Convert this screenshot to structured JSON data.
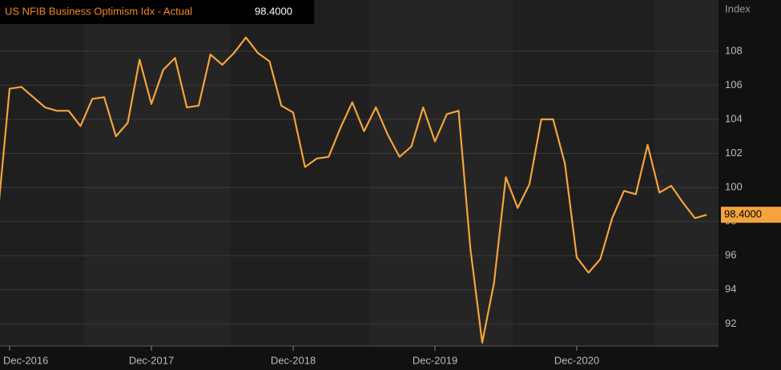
{
  "chart_data": {
    "type": "line",
    "axis_label": "Index",
    "categories": [
      null,
      "Dec-2016",
      null,
      null,
      null,
      null,
      null,
      null,
      null,
      null,
      null,
      null,
      null,
      "Dec-2017",
      null,
      null,
      null,
      null,
      null,
      null,
      null,
      null,
      null,
      null,
      null,
      "Dec-2018",
      null,
      null,
      null,
      null,
      null,
      null,
      null,
      null,
      null,
      null,
      null,
      "Dec-2019",
      null,
      null,
      null,
      null,
      null,
      null,
      null,
      null,
      null,
      null,
      null,
      "Dec-2020",
      null,
      null,
      null,
      null,
      null,
      null,
      null,
      null,
      null,
      null,
      null
    ],
    "series": [
      {
        "name": "US NFIB Business Optimism Idx - Actual",
        "color": "#f5a33c",
        "values": [
          98.4,
          105.8,
          105.9,
          105.3,
          104.7,
          104.5,
          104.5,
          103.6,
          105.2,
          105.3,
          103.0,
          103.8,
          107.5,
          104.9,
          106.9,
          107.6,
          104.7,
          104.8,
          107.8,
          107.2,
          107.9,
          108.8,
          107.9,
          107.4,
          104.8,
          104.4,
          101.2,
          101.7,
          101.8,
          103.5,
          105.0,
          103.3,
          104.7,
          103.1,
          101.8,
          102.4,
          104.7,
          102.7,
          104.3,
          104.5,
          96.4,
          90.9,
          94.4,
          100.6,
          98.8,
          100.2,
          104.0,
          104.0,
          101.4,
          95.9,
          95.0,
          95.8,
          98.2,
          99.8,
          99.6,
          102.5,
          99.7,
          100.1,
          99.1,
          98.2,
          98.4
        ],
        "value_labels": [
          null,
          null,
          null,
          null,
          null,
          null,
          null,
          null,
          null,
          null,
          null,
          null,
          null,
          null,
          null,
          null,
          null,
          null,
          null,
          null,
          null,
          null,
          null,
          null,
          null,
          null,
          null,
          null,
          null,
          null,
          null,
          null,
          null,
          null,
          null,
          null,
          null,
          null,
          null,
          null,
          null,
          null,
          null,
          null,
          null,
          null,
          null,
          null,
          null,
          null,
          null,
          null,
          null,
          null,
          null,
          null,
          null,
          null,
          null,
          null,
          "98.4000"
        ]
      }
    ],
    "ylim": [
      90.7,
      111
    ],
    "yticks": [
      92,
      94,
      96,
      98,
      100,
      102,
      104,
      106,
      108
    ],
    "grid": true,
    "y_axis_side": "right"
  }
}
